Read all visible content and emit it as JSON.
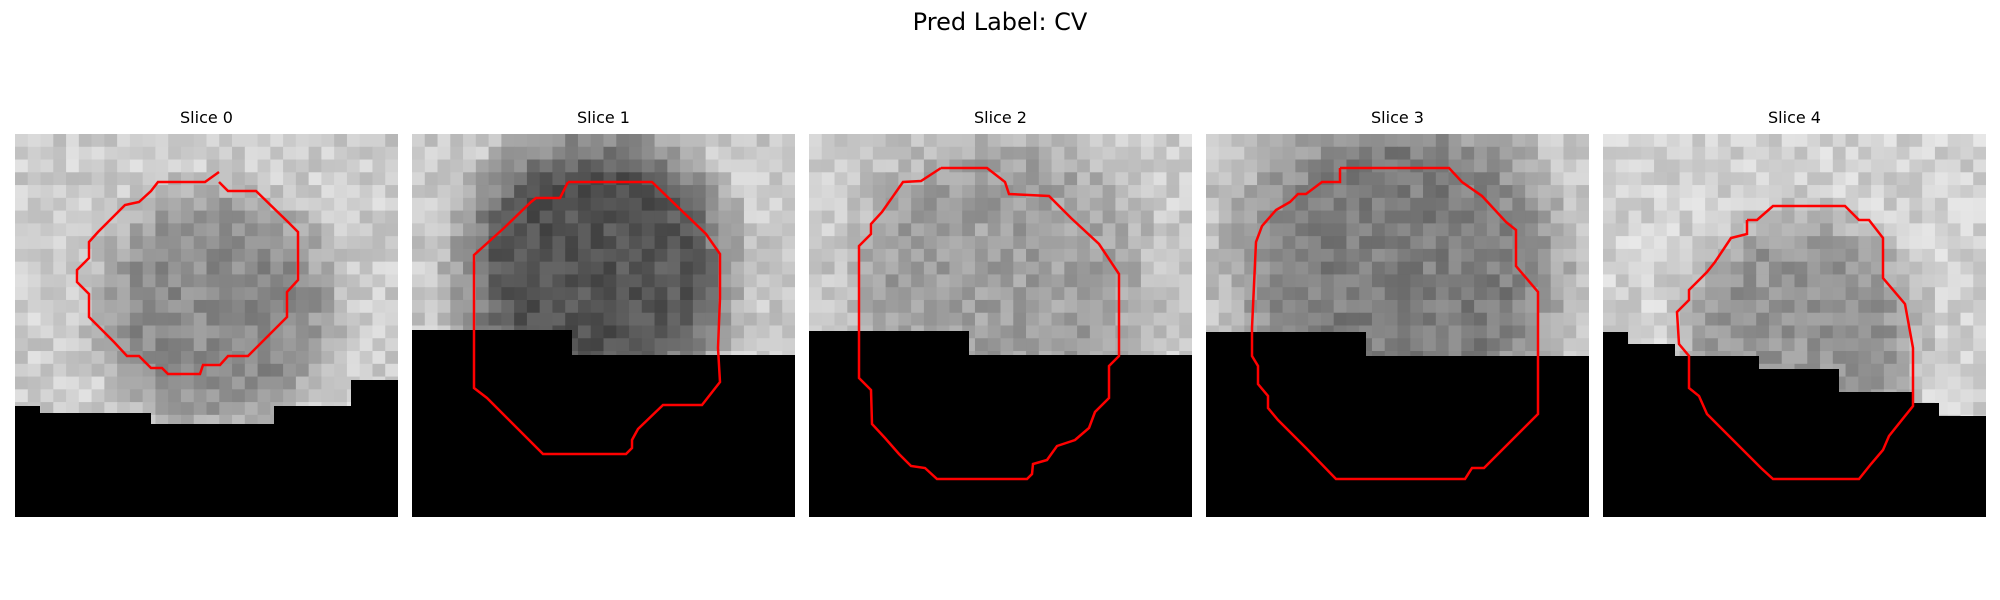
{
  "figure": {
    "title": "Pred Label: CV"
  },
  "panels": [
    {
      "title": "Slice 0"
    },
    {
      "title": "Slice 1"
    },
    {
      "title": "Slice 2"
    },
    {
      "title": "Slice 3"
    },
    {
      "title": "Slice 4"
    }
  ],
  "colors": {
    "contour": "#ff0000",
    "mask": "#000000"
  }
}
